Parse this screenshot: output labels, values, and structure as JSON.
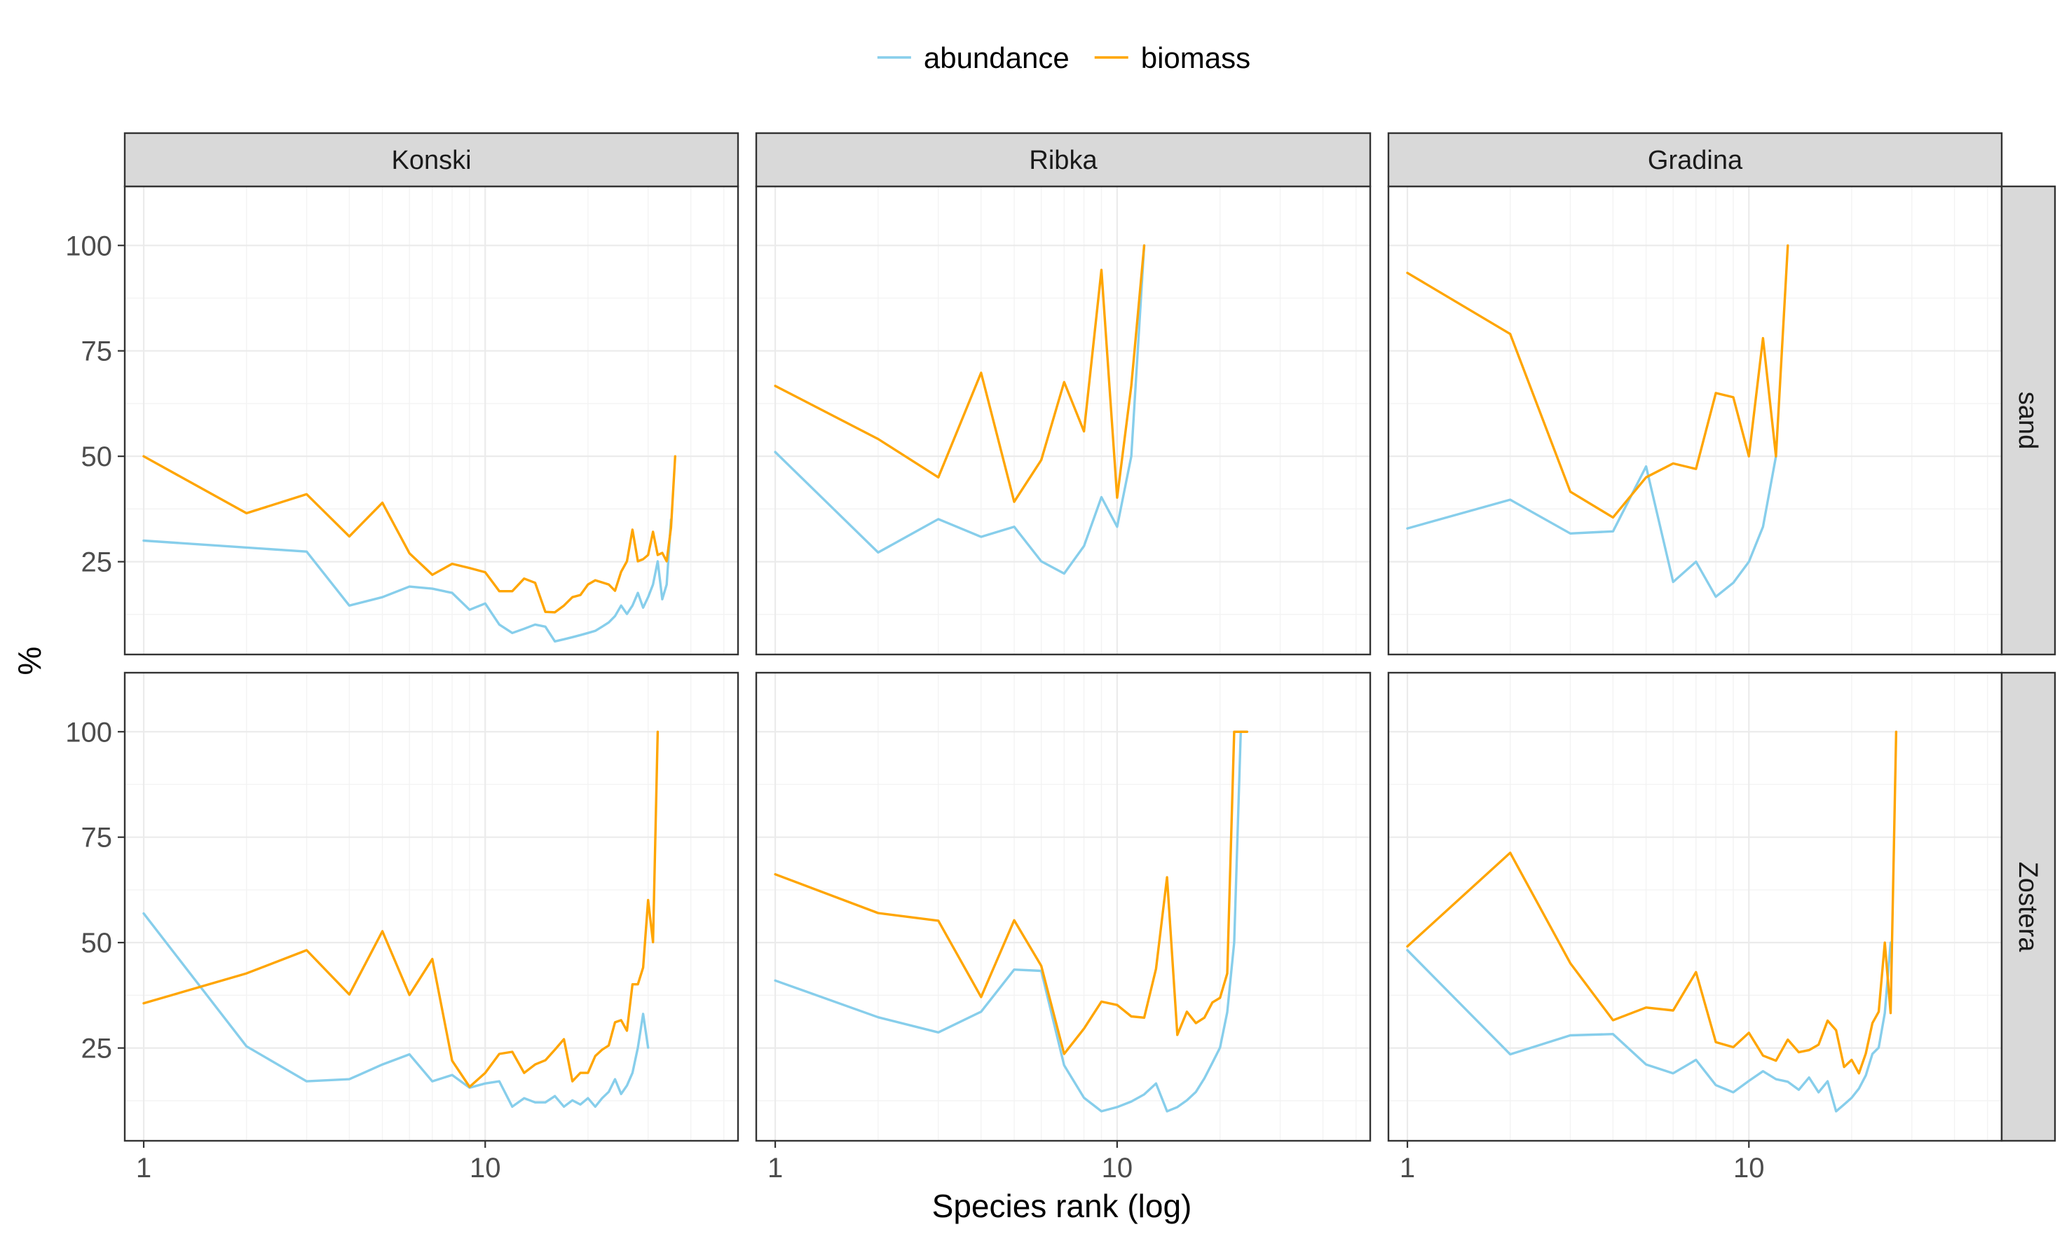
{
  "chart_data": {
    "type": "line",
    "facet_columns": [
      "Konski",
      "Ribka",
      "Gradina"
    ],
    "facet_rows": [
      "sand",
      "Zostera"
    ],
    "xlabel": "Species rank (log)",
    "ylabel": "%",
    "x_scale": "log10",
    "xlim": [
      0.88,
      55
    ],
    "ylim": [
      3,
      114
    ],
    "x_ticks": [
      1,
      10
    ],
    "x_tick_labels": [
      "1",
      "10"
    ],
    "y_ticks": [
      25,
      50,
      75,
      100
    ],
    "y_tick_labels": [
      "25",
      "50",
      "75",
      "100"
    ],
    "grid": true,
    "legend": {
      "position": "top",
      "entries": [
        {
          "name": "abundance",
          "color": "#87ceeb"
        },
        {
          "name": "biomass",
          "color": "#ffa500"
        }
      ]
    },
    "panels": [
      {
        "column": "Konski",
        "row": "sand",
        "series": [
          {
            "name": "abundance",
            "x": [
              1,
              3,
              4,
              5,
              6,
              7,
              8,
              9,
              10,
              11,
              12,
              13,
              14,
              15,
              16,
              17,
              18,
              19,
              20,
              21,
              22,
              23,
              24,
              25,
              26,
              27,
              28,
              29,
              30,
              31,
              32,
              33,
              34,
              35
            ],
            "y": [
              30,
              27.4,
              14.6,
              16.6,
              19.1,
              18.6,
              17.6,
              13.6,
              15.1,
              10.1,
              8.1,
              9.1,
              10.1,
              9.6,
              6.1,
              6.6,
              7.1,
              7.6,
              8.1,
              8.6,
              9.6,
              10.6,
              12.1,
              14.6,
              12.6,
              14.6,
              17.6,
              14.1,
              16.6,
              19.6,
              25.1,
              16.1,
              19.6,
              35
            ]
          },
          {
            "name": "biomass",
            "x": [
              1,
              2,
              3,
              4,
              5,
              6,
              7,
              8,
              9,
              10,
              11,
              12,
              13,
              14,
              15,
              16,
              17,
              18,
              19,
              20,
              21,
              22,
              23,
              24,
              25,
              26,
              27,
              28,
              29,
              30,
              31,
              32,
              33,
              34,
              35,
              36
            ],
            "y": [
              50,
              36.5,
              41,
              31,
              39,
              27,
              21.9,
              24.5,
              23.5,
              22.5,
              18,
              18,
              21,
              20,
              13.1,
              13,
              14.6,
              16.6,
              17.1,
              19.6,
              20.6,
              20.1,
              19.6,
              18.1,
              22.6,
              25.1,
              32.6,
              25.1,
              25.6,
              26.6,
              32.1,
              26.6,
              27.1,
              25.1,
              33.1,
              50
            ]
          }
        ]
      },
      {
        "column": "Ribka",
        "row": "sand",
        "series": [
          {
            "name": "abundance",
            "x": [
              1,
              2,
              3,
              4,
              5,
              6,
              7,
              8,
              9,
              10,
              11,
              12
            ],
            "y": [
              51,
              27.2,
              35.1,
              30.9,
              33.3,
              25.1,
              22.2,
              28.7,
              40.3,
              33.3,
              50,
              100
            ]
          },
          {
            "name": "biomass",
            "x": [
              1,
              2,
              3,
              4,
              5,
              6,
              7,
              8,
              9,
              10,
              11,
              12
            ],
            "y": [
              66.7,
              54.1,
              45,
              69.8,
              39.2,
              49.1,
              67.6,
              55.9,
              94.2,
              40.2,
              66.7,
              100
            ]
          }
        ]
      },
      {
        "column": "Gradina",
        "row": "sand",
        "series": [
          {
            "name": "abundance",
            "x": [
              1,
              2,
              3,
              4,
              5,
              6,
              7,
              8,
              9,
              10,
              11,
              12
            ],
            "y": [
              32.9,
              39.7,
              31.7,
              32.2,
              47.6,
              20.2,
              25,
              16.7,
              20,
              25,
              33.3,
              50
            ]
          },
          {
            "name": "biomass",
            "x": [
              1,
              2,
              3,
              4,
              5,
              6,
              7,
              8,
              9,
              10,
              11,
              12,
              13
            ],
            "y": [
              93.5,
              79,
              41.6,
              35.5,
              45,
              48.3,
              47,
              65,
              64,
              50,
              78,
              50,
              100
            ]
          }
        ]
      },
      {
        "column": "Konski",
        "row": "Zostera",
        "series": [
          {
            "name": "abundance",
            "x": [
              1,
              2,
              3,
              4,
              5,
              6,
              7,
              8,
              9,
              10,
              11,
              12,
              13,
              14,
              15,
              16,
              17,
              18,
              19,
              20,
              21,
              22,
              23,
              24,
              25,
              26,
              27,
              28,
              29,
              30
            ],
            "y": [
              56.9,
              25.4,
              17.1,
              17.6,
              21.1,
              23.5,
              17.1,
              18.6,
              15.6,
              16.6,
              17.1,
              11.1,
              13.1,
              12.1,
              12.1,
              13.6,
              11.1,
              12.6,
              11.6,
              13.1,
              11.1,
              13.1,
              14.6,
              17.6,
              14.1,
              16.1,
              19.1,
              25.1,
              33.1,
              25.1
            ]
          },
          {
            "name": "biomass",
            "x": [
              1,
              2,
              3,
              4,
              5,
              6,
              7,
              8,
              9,
              10,
              11,
              12,
              13,
              14,
              15,
              16,
              17,
              18,
              19,
              20,
              21,
              22,
              23,
              24,
              25,
              26,
              27,
              28,
              29,
              30,
              31,
              32
            ],
            "y": [
              35.6,
              42.7,
              48.2,
              37.7,
              52.7,
              37.6,
              46.1,
              22,
              15.8,
              19.1,
              23.6,
              24.1,
              19.1,
              21.1,
              22.1,
              24.6,
              27.1,
              17.1,
              19.1,
              19.1,
              23.1,
              24.6,
              25.6,
              31.1,
              31.6,
              29.1,
              40.1,
              40.1,
              44.1,
              60.1,
              50.1,
              100
            ]
          }
        ]
      },
      {
        "column": "Ribka",
        "row": "Zostera",
        "series": [
          {
            "name": "abundance",
            "x": [
              1,
              2,
              3,
              4,
              5,
              6,
              7,
              8,
              9,
              10,
              11,
              12,
              13,
              14,
              15,
              16,
              17,
              18,
              19,
              20,
              21,
              22,
              23,
              24
            ],
            "y": [
              41,
              32.3,
              28.7,
              33.6,
              43.6,
              43.3,
              20.9,
              13.2,
              10,
              11,
              12.3,
              14,
              16.6,
              10,
              11,
              12.6,
              14.6,
              17.8,
              21.5,
              25.1,
              33.5,
              50,
              100,
              100
            ]
          },
          {
            "name": "biomass",
            "x": [
              1,
              2,
              3,
              4,
              5,
              6,
              7,
              8,
              9,
              10,
              11,
              12,
              13,
              14,
              15,
              16,
              17,
              18,
              19,
              20,
              21,
              22,
              23,
              24
            ],
            "y": [
              66.2,
              57,
              55.2,
              37.1,
              55.3,
              44.5,
              23.6,
              29.6,
              36,
              35.2,
              32.5,
              32.2,
              43.8,
              65.5,
              28.1,
              33.6,
              30.9,
              32.2,
              35.8,
              36.9,
              42.7,
              100,
              100,
              100
            ]
          }
        ]
      },
      {
        "column": "Gradina",
        "row": "Zostera",
        "series": [
          {
            "name": "abundance",
            "x": [
              1,
              2,
              3,
              4,
              5,
              6,
              7,
              8,
              9,
              10,
              11,
              12,
              13,
              14,
              15,
              16,
              17,
              18,
              19,
              20,
              21,
              22,
              23,
              24,
              25,
              26
            ],
            "y": [
              48.2,
              23.5,
              28,
              28.3,
              21.1,
              19,
              22.2,
              16.2,
              14.5,
              17.2,
              19.5,
              17.6,
              17,
              15.1,
              18,
              14.5,
              17.1,
              10,
              11.6,
              13.2,
              15.4,
              18.5,
              23.6,
              25.1,
              33.3,
              50
            ]
          },
          {
            "name": "biomass",
            "x": [
              1,
              2,
              3,
              4,
              5,
              6,
              7,
              8,
              9,
              10,
              11,
              12,
              13,
              14,
              15,
              16,
              17,
              18,
              19,
              20,
              21,
              22,
              23,
              24,
              25,
              26,
              27
            ],
            "y": [
              49.1,
              71.3,
              45.1,
              31.6,
              34.6,
              33.9,
              43,
              26.4,
              25.2,
              28.6,
              23.2,
              22,
              27,
              24,
              24.5,
              25.8,
              31.5,
              29.2,
              20.5,
              22.2,
              19,
              23.7,
              30.9,
              33.6,
              50,
              33.3,
              100
            ]
          }
        ]
      }
    ]
  }
}
